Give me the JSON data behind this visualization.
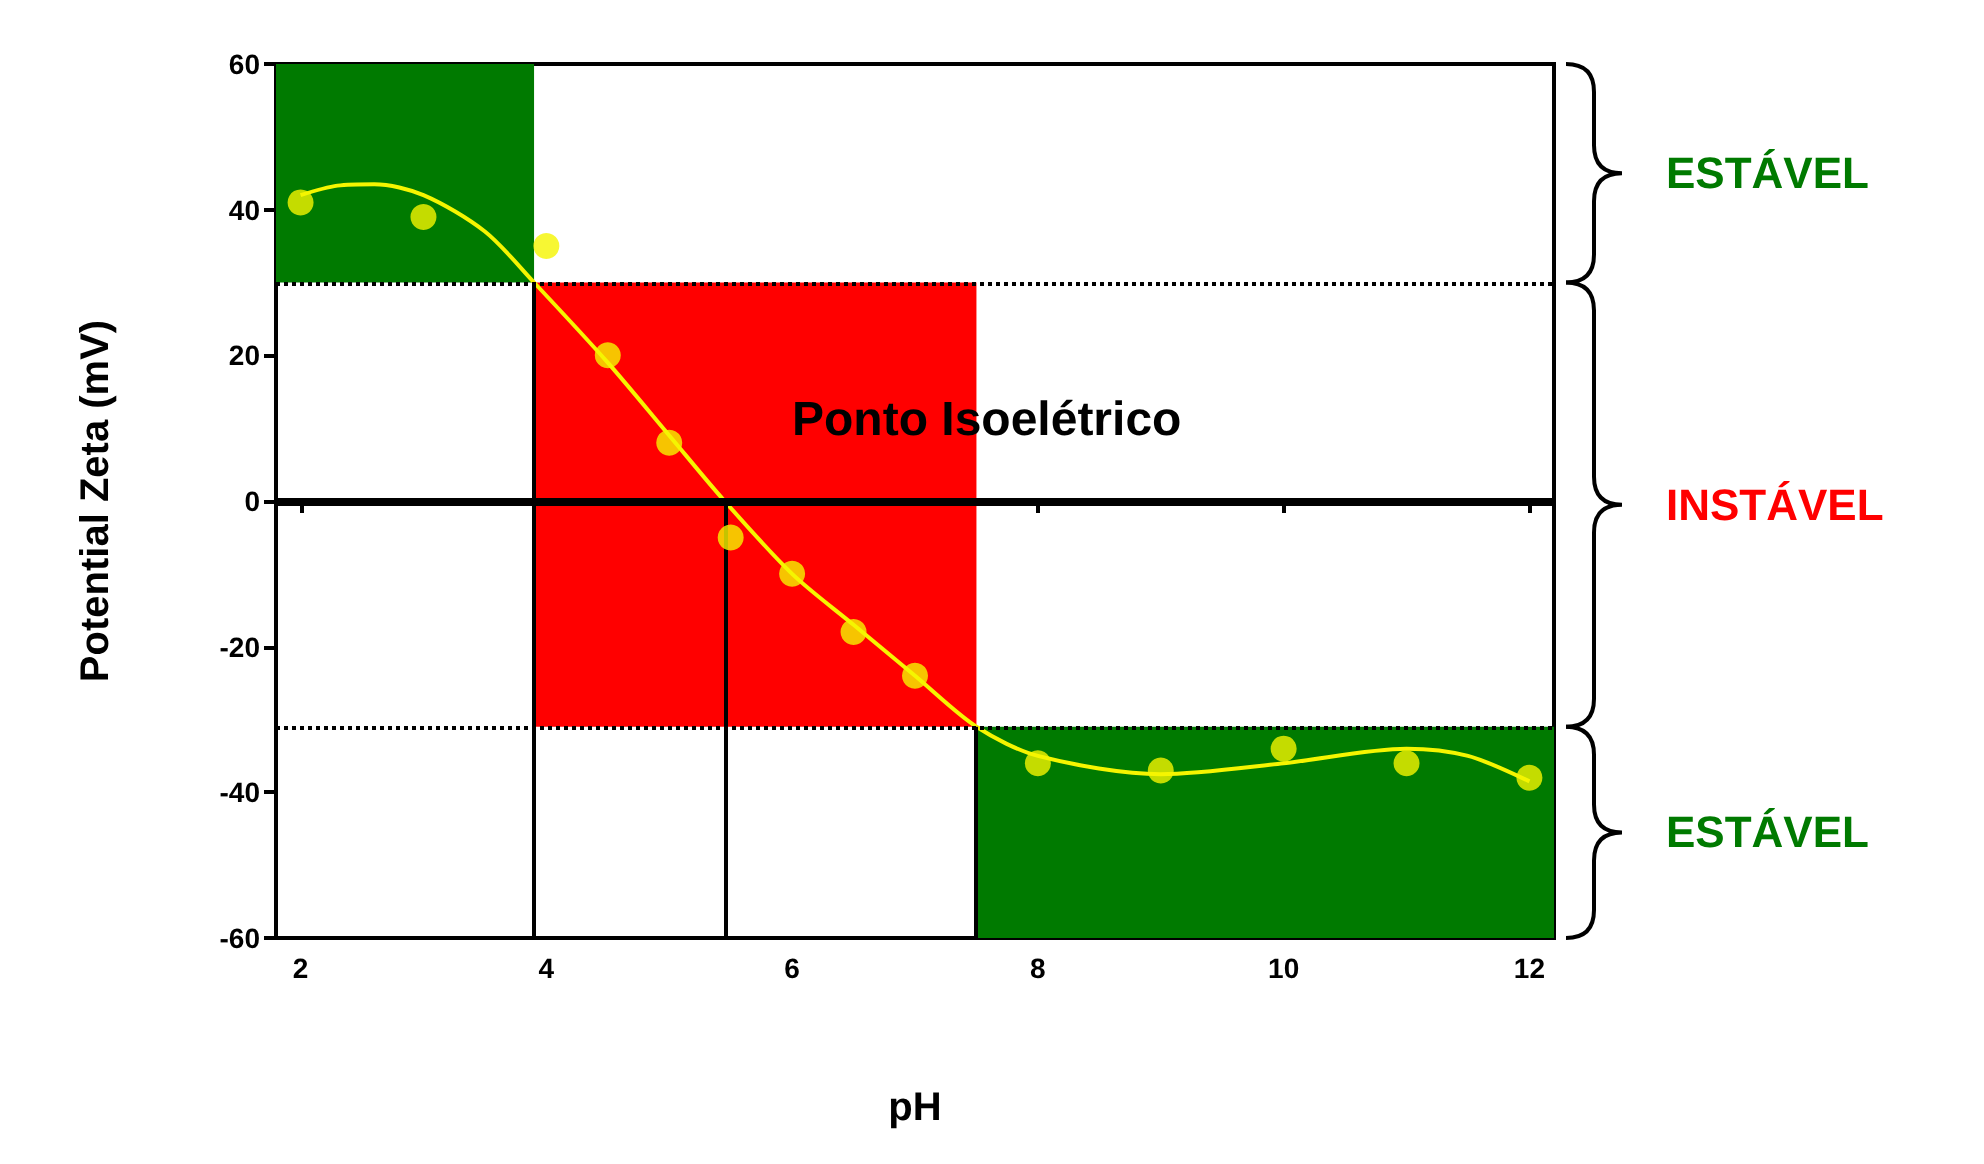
{
  "chart_data": {
    "type": "scatter",
    "xlabel": "pH",
    "ylabel": "Potential Zeta (mV)",
    "xlim": [
      1.8,
      12.2
    ],
    "xticks": [
      2,
      4,
      6,
      8,
      10,
      12
    ],
    "ylim": [
      -60,
      60
    ],
    "yticks": [
      -60,
      -40,
      -20,
      0,
      20,
      40,
      60
    ],
    "grid": false,
    "marker": "circle",
    "x": [
      2,
      3,
      4,
      4.5,
      5,
      5.5,
      6,
      6.5,
      7,
      8,
      9,
      10,
      11,
      12
    ],
    "series": [
      {
        "color": "#f5f500",
        "values": [
          41,
          39,
          35,
          20,
          8,
          -5,
          -10,
          -18,
          -24,
          -36,
          -37,
          -34,
          -36,
          -38
        ]
      },
      {
        "type": "line",
        "color": "#f5f500",
        "marker": "none",
        "x": [
          2,
          2.3,
          2.6,
          3,
          3.5,
          3.9,
          4.5,
          5,
          5.45,
          6,
          6.5,
          7,
          7.5,
          8,
          9,
          10,
          11,
          11.5,
          12
        ],
        "values": [
          42,
          43.3,
          43.5,
          42,
          37,
          30,
          19,
          9,
          0,
          -10,
          -17,
          -24,
          -31,
          -35,
          -37.5,
          -36,
          -34,
          -35,
          -38.5
        ]
      }
    ],
    "bands": [
      {
        "axis": "y",
        "from": 30,
        "to": 60,
        "label": "ESTÁVEL",
        "color": "#007a00"
      },
      {
        "axis": "y",
        "from": -31,
        "to": 30,
        "label": "INSTÁVEL",
        "color": "#ff0000"
      },
      {
        "axis": "y",
        "from": -60,
        "to": -31,
        "label": "ESTÁVEL",
        "color": "#007a00"
      }
    ],
    "ref_lines": [
      {
        "axis": "y",
        "value": 0,
        "line_style": "solid"
      },
      {
        "axis": "y",
        "value": 30,
        "line_style": "dotted"
      },
      {
        "axis": "y",
        "value": -31,
        "line_style": "dotted"
      },
      {
        "axis": "x",
        "value": 3.9,
        "line_style": "solid"
      },
      {
        "axis": "x",
        "value": 5.45,
        "line_style": "solid"
      },
      {
        "axis": "x",
        "value": 7.5,
        "line_style": "solid"
      }
    ],
    "annotations": [
      "Ponto Isoelétrico"
    ]
  }
}
